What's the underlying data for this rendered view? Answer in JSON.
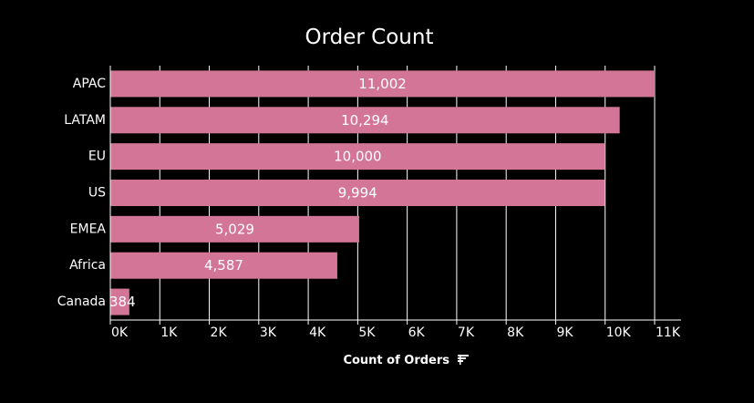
{
  "colors": {
    "background": "#000000",
    "bar": "#d37597",
    "text": "#ffffff",
    "grid": "#ffffff"
  },
  "chart_data": {
    "type": "bar",
    "orientation": "horizontal",
    "title": "Order Count",
    "xlabel": "Count of Orders",
    "ylabel": "",
    "categories": [
      "APAC",
      "LATAM",
      "EU",
      "US",
      "EMEA",
      "Africa",
      "Canada"
    ],
    "values": [
      11002,
      10294,
      10000,
      9994,
      5029,
      4587,
      384
    ],
    "data_labels": [
      "11,002",
      "10,294",
      "10,000",
      "9,994",
      "5,029",
      "4,587",
      "384"
    ],
    "xlim": [
      0,
      11000
    ],
    "xticks": [
      0,
      1000,
      2000,
      3000,
      4000,
      5000,
      6000,
      7000,
      8000,
      9000,
      10000,
      11000
    ],
    "xtick_labels": [
      "0K",
      "1K",
      "2K",
      "3K",
      "4K",
      "5K",
      "6K",
      "7K",
      "8K",
      "9K",
      "10K",
      "11K"
    ],
    "grid": true,
    "sorted": "descending",
    "axis_icon": "sort-descending-icon"
  }
}
